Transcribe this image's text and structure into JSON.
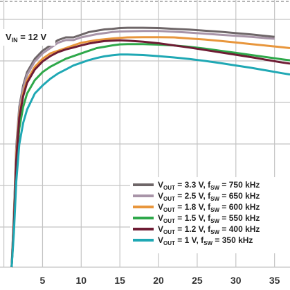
{
  "chart_data": {
    "type": "line",
    "annotation": {
      "main": "V",
      "sub": "IN",
      "rest": " = 12 V"
    },
    "xlim": [
      -0.5,
      37
    ],
    "ylim": [
      0,
      100
    ],
    "grid": true,
    "legend_position": "bottom-right",
    "x_ticks": [
      5,
      10,
      15,
      20,
      25,
      30,
      35
    ],
    "series": [
      {
        "name": "V_OUT = 3.3 V, f_SW = 750 kHz",
        "legend": {
          "v": "V",
          "vsub": "OUT",
          "mid": " = 3.3 V, f",
          "fsub": "SW",
          "end": " = 750 kHz"
        },
        "color": "#6e6668",
        "x": [
          1.0,
          1.3,
          1.6,
          2.0,
          2.5,
          3,
          4,
          5,
          6,
          7,
          8,
          9,
          10,
          11,
          12,
          13,
          14,
          15,
          16,
          18,
          20,
          22,
          24,
          26,
          28,
          30,
          32,
          34,
          35
        ],
        "y": [
          0,
          20,
          45,
          60,
          68,
          73,
          78,
          81,
          83,
          85,
          86,
          86,
          87,
          88,
          88.5,
          89,
          89.2,
          89.5,
          89.6,
          89.6,
          89.5,
          89.2,
          88.9,
          88.5,
          88.1,
          87.6,
          87.1,
          86.5,
          86.2
        ]
      },
      {
        "name": "V_OUT = 2.5 V, f_SW = 650 kHz",
        "legend": {
          "v": "V",
          "vsub": "OUT",
          "mid": " = 2.5 V, f",
          "fsub": "SW",
          "end": " = 650 kHz"
        },
        "color": "#a894a8",
        "x": [
          1.0,
          1.3,
          1.6,
          2.0,
          2.5,
          3,
          4,
          5,
          6,
          7,
          8,
          9,
          10,
          11,
          12,
          13,
          14,
          15,
          16,
          18,
          20,
          22,
          24,
          26,
          28,
          30,
          32,
          34,
          35
        ],
        "y": [
          0,
          19,
          44,
          59,
          67,
          72,
          77,
          80,
          82,
          84,
          85,
          85,
          86,
          86.6,
          87.2,
          87.6,
          88,
          88.2,
          88.3,
          88.4,
          88.4,
          88.1,
          87.8,
          87.4,
          87,
          86.6,
          86.2,
          85.7,
          85.5
        ]
      },
      {
        "name": "V_OUT = 1.8 V, f_SW = 600 kHz",
        "legend": {
          "v": "V",
          "vsub": "OUT",
          "mid": " = 1.8 V, f",
          "fsub": "SW",
          "end": " = 600 kHz"
        },
        "color": "#e8963c",
        "x": [
          1.0,
          1.3,
          1.6,
          2.0,
          2.5,
          3,
          4,
          5,
          6,
          7,
          8,
          9,
          10,
          11,
          12,
          13,
          14,
          15,
          16,
          18,
          20,
          22,
          24,
          26,
          28,
          30,
          32,
          34,
          36,
          37
        ],
        "y": [
          0,
          17,
          42,
          57,
          65,
          70,
          75,
          78,
          80,
          81,
          82,
          83,
          84,
          84.5,
          85,
          85.3,
          85.6,
          85.8,
          86,
          86.1,
          86.1,
          86,
          85.6,
          85.2,
          84.7,
          84.1,
          83.5,
          82.9,
          82.3,
          82
        ]
      },
      {
        "name": "V_OUT = 1.5 V, f_SW = 550 kHz",
        "legend": {
          "v": "V",
          "vsub": "OUT",
          "mid": " = 1.5 V, f",
          "fsub": "SW",
          "end": " = 550 kHz"
        },
        "color": "#2ea84a",
        "x": [
          1.0,
          1.3,
          1.6,
          2.0,
          2.5,
          3,
          4,
          5,
          6,
          7,
          8,
          9,
          10,
          11,
          12,
          13,
          14,
          15,
          16,
          18,
          20,
          22,
          24,
          26,
          28,
          30,
          32,
          34,
          36,
          37
        ],
        "y": [
          0,
          15,
          38,
          52,
          60,
          65,
          70,
          73,
          75,
          76.5,
          78,
          79,
          80,
          81,
          82,
          82.5,
          83,
          83.4,
          83.5,
          83.5,
          83.3,
          83,
          82.5,
          81.8,
          81,
          80.2,
          79.4,
          78.6,
          77.8,
          77.4
        ]
      },
      {
        "name": "V_OUT = 1.2 V, f_SW = 400 kHz",
        "legend": {
          "v": "V",
          "vsub": "OUT",
          "mid": " = 1.2 V, f",
          "fsub": "SW",
          "end": " = 400 kHz"
        },
        "color": "#6e1c34",
        "x": [
          1.0,
          1.3,
          1.6,
          2.0,
          2.5,
          3,
          4,
          5,
          6,
          7,
          8,
          9,
          10,
          11,
          12,
          13,
          14,
          15,
          16,
          18,
          20,
          22,
          24,
          26,
          28,
          30,
          32,
          34,
          36,
          37
        ],
        "y": [
          0,
          16,
          40,
          56,
          64,
          69,
          74,
          77,
          79,
          80.5,
          81.5,
          82.2,
          83,
          83.7,
          84.2,
          84.6,
          84.8,
          84.9,
          84.8,
          84.4,
          83.8,
          83,
          82.2,
          81.3,
          80.4,
          79.5,
          78.6,
          77.6,
          76.6,
          76.2
        ]
      },
      {
        "name": "V_OUT = 1 V, f_SW = 350 kHz",
        "legend": {
          "v": "V",
          "vsub": "OUT",
          "mid": " = 1 V, f",
          "fsub": "SW",
          "end": " = 350 kHz"
        },
        "color": "#1fa8b4",
        "x": [
          1.0,
          1.3,
          1.6,
          2.0,
          2.5,
          3,
          4,
          5,
          6,
          7,
          8,
          9,
          10,
          11,
          12,
          13,
          14,
          15,
          16,
          18,
          20,
          22,
          24,
          26,
          28,
          30,
          32,
          34,
          36,
          37
        ],
        "y": [
          0,
          13,
          32,
          46,
          54,
          59,
          65,
          68,
          70.5,
          72.5,
          74,
          75.5,
          76.5,
          77.5,
          78.3,
          78.9,
          79.3,
          79.6,
          79.6,
          79.4,
          79,
          78.5,
          77.9,
          77.2,
          76.4,
          75.5,
          74.6,
          73.6,
          72.6,
          72.1
        ]
      }
    ]
  }
}
